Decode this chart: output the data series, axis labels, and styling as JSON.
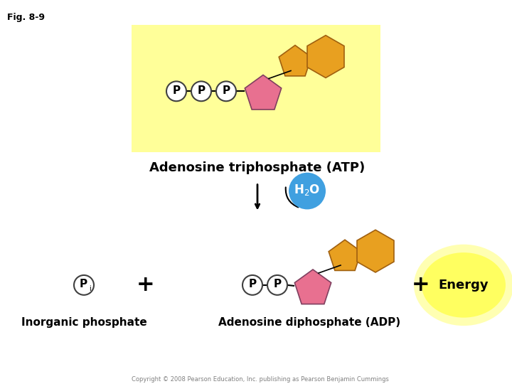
{
  "fig_label": "Fig. 8-9",
  "title_atp": "Adenosine triphosphate (ATP)",
  "title_adp": "Adenosine diphosphate (ADP)",
  "label_inorganic": "Inorganic phosphate",
  "label_energy": "Energy",
  "label_h2o": "H₂O",
  "copyright": "Copyright © 2008 Pearson Education, Inc. publishing as Pearson Benjamin Cummings",
  "bg_yellow": "#FFFF99",
  "color_orange": "#E8A020",
  "color_pink": "#E87090",
  "color_p_circle": "#FFFFFF",
  "color_p_border": "#404040",
  "color_blue_circle": "#40A0E0",
  "color_energy_yellow": "#FFFF60",
  "color_energy_outer": "#FFFF80"
}
